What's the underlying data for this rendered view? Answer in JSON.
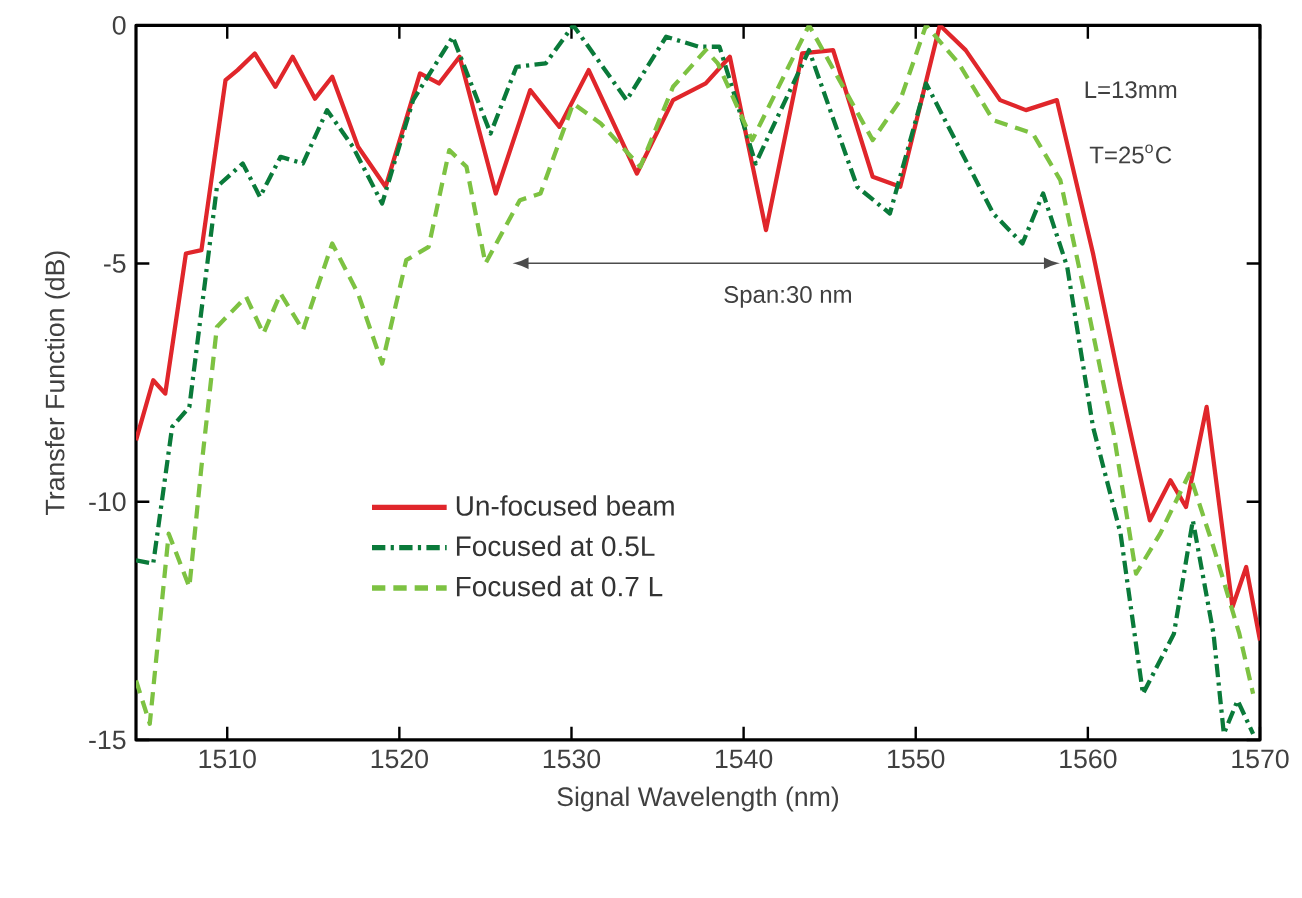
{
  "chart_data": {
    "type": "line",
    "xlabel": "Signal Wavelength (nm)",
    "ylabel": "Transfer Function (dB)",
    "xlim": [
      1504.7,
      1570
    ],
    "ylim": [
      -15,
      0
    ],
    "xticks": [
      1510,
      1520,
      1530,
      1540,
      1550,
      1560,
      1570
    ],
    "yticks": [
      -15,
      -10,
      -5,
      0
    ],
    "legend": "bottom left",
    "grid": false,
    "marker": "none",
    "annotations": [
      "L=13mm",
      "T=25$^{o}$C",
      "Span:30 nm"
    ],
    "series": [
      {
        "name": "Un-focused beam",
        "color": "#e0262b",
        "line_style": "solid",
        "x": [
          1504.7,
          1505.7,
          1506.4,
          1507.6,
          1508.5,
          1509.9,
          1510.6,
          1511.6,
          1512.8,
          1513.8,
          1515.1,
          1516.1,
          1517.6,
          1519.2,
          1521.2,
          1522.3,
          1523.5,
          1525.6,
          1527.6,
          1529.3,
          1531.0,
          1533.8,
          1535.9,
          1537.8,
          1539.2,
          1541.3,
          1543.4,
          1545.2,
          1547.5,
          1549.1,
          1551.4,
          1552.9,
          1554.9,
          1556.4,
          1558.2,
          1560.3,
          1561.9,
          1563.6,
          1564.8,
          1565.7,
          1566.9,
          1568.4,
          1569.2,
          1570
        ],
        "values": [
          -8.71,
          -7.45,
          -7.73,
          -4.79,
          -4.72,
          -1.15,
          -0.94,
          -0.59,
          -1.29,
          -0.66,
          -1.54,
          -1.08,
          -2.55,
          -3.39,
          -1.01,
          -1.22,
          -0.66,
          -3.53,
          -1.36,
          -2.13,
          -0.94,
          -3.11,
          -1.57,
          -1.22,
          -0.66,
          -4.3,
          -0.59,
          -0.52,
          -3.18,
          -3.39,
          0,
          -0.52,
          -1.57,
          -1.78,
          -1.57,
          -4.79,
          -7.59,
          -10.39,
          -9.55,
          -10.11,
          -8.01,
          -12.21,
          -11.37,
          -12.91
        ]
      },
      {
        "name": "Focused at 0.5L",
        "color": "#0a7a3a",
        "line_style": "dashdot",
        "x": [
          1504.7,
          1505.7,
          1506.8,
          1507.8,
          1509.4,
          1510.9,
          1511.9,
          1513.1,
          1514.4,
          1515.8,
          1517.3,
          1519.0,
          1520.8,
          1523.1,
          1525.3,
          1526.8,
          1528.5,
          1530.1,
          1533.2,
          1535.5,
          1537.4,
          1538.6,
          1540.7,
          1543.8,
          1546.6,
          1548.5,
          1550.6,
          1552.2,
          1554.5,
          1556.2,
          1557.4,
          1558.8,
          1560.3,
          1561.9,
          1563.2,
          1565.0,
          1566.1,
          1567.3,
          1567.9,
          1568.7,
          1569.6
        ],
        "values": [
          -11.23,
          -11.3,
          -8.43,
          -8.01,
          -3.39,
          -2.9,
          -3.6,
          -2.76,
          -2.9,
          -1.78,
          -2.55,
          -3.74,
          -1.57,
          -0.24,
          -2.27,
          -0.87,
          -0.8,
          0,
          -1.57,
          -0.24,
          -0.45,
          -0.45,
          -2.9,
          -0.52,
          -3.39,
          -3.95,
          -1.22,
          -2.34,
          -3.95,
          -4.58,
          -3.53,
          -5.07,
          -8.43,
          -10.67,
          -14.03,
          -12.77,
          -10.39,
          -12.77,
          -14.87,
          -14.17,
          -14.87
        ]
      },
      {
        "name": "Focused at 0.7 L",
        "color": "#7dc242",
        "line_style": "dashed",
        "x": [
          1504.7,
          1505.5,
          1506.6,
          1507.8,
          1508.5,
          1509.4,
          1511.1,
          1512.1,
          1513.1,
          1514.4,
          1516.1,
          1517.6,
          1519.0,
          1520.4,
          1521.7,
          1522.9,
          1523.9,
          1525.0,
          1527.0,
          1528.2,
          1530.1,
          1531.7,
          1534.0,
          1535.9,
          1537.8,
          1538.5,
          1540.5,
          1543.8,
          1547.5,
          1549.1,
          1550.6,
          1552.5,
          1554.5,
          1556.8,
          1558.4,
          1559.9,
          1561.5,
          1562.8,
          1564.2,
          1565.9,
          1567.3,
          1568.8,
          1569.6
        ],
        "values": [
          -13.75,
          -14.66,
          -10.67,
          -11.79,
          -9.27,
          -6.33,
          -5.7,
          -6.47,
          -5.63,
          -6.4,
          -4.58,
          -5.63,
          -7.1,
          -4.93,
          -4.65,
          -2.62,
          -2.97,
          -5.0,
          -3.67,
          -3.53,
          -1.64,
          -2.06,
          -2.97,
          -1.29,
          -0.52,
          -0.8,
          -2.41,
          0,
          -2.41,
          -1.57,
          0,
          -0.8,
          -1.99,
          -2.27,
          -3.25,
          -5.77,
          -8.57,
          -11.51,
          -10.67,
          -9.41,
          -10.95,
          -12.77,
          -14.03
        ]
      }
    ]
  }
}
